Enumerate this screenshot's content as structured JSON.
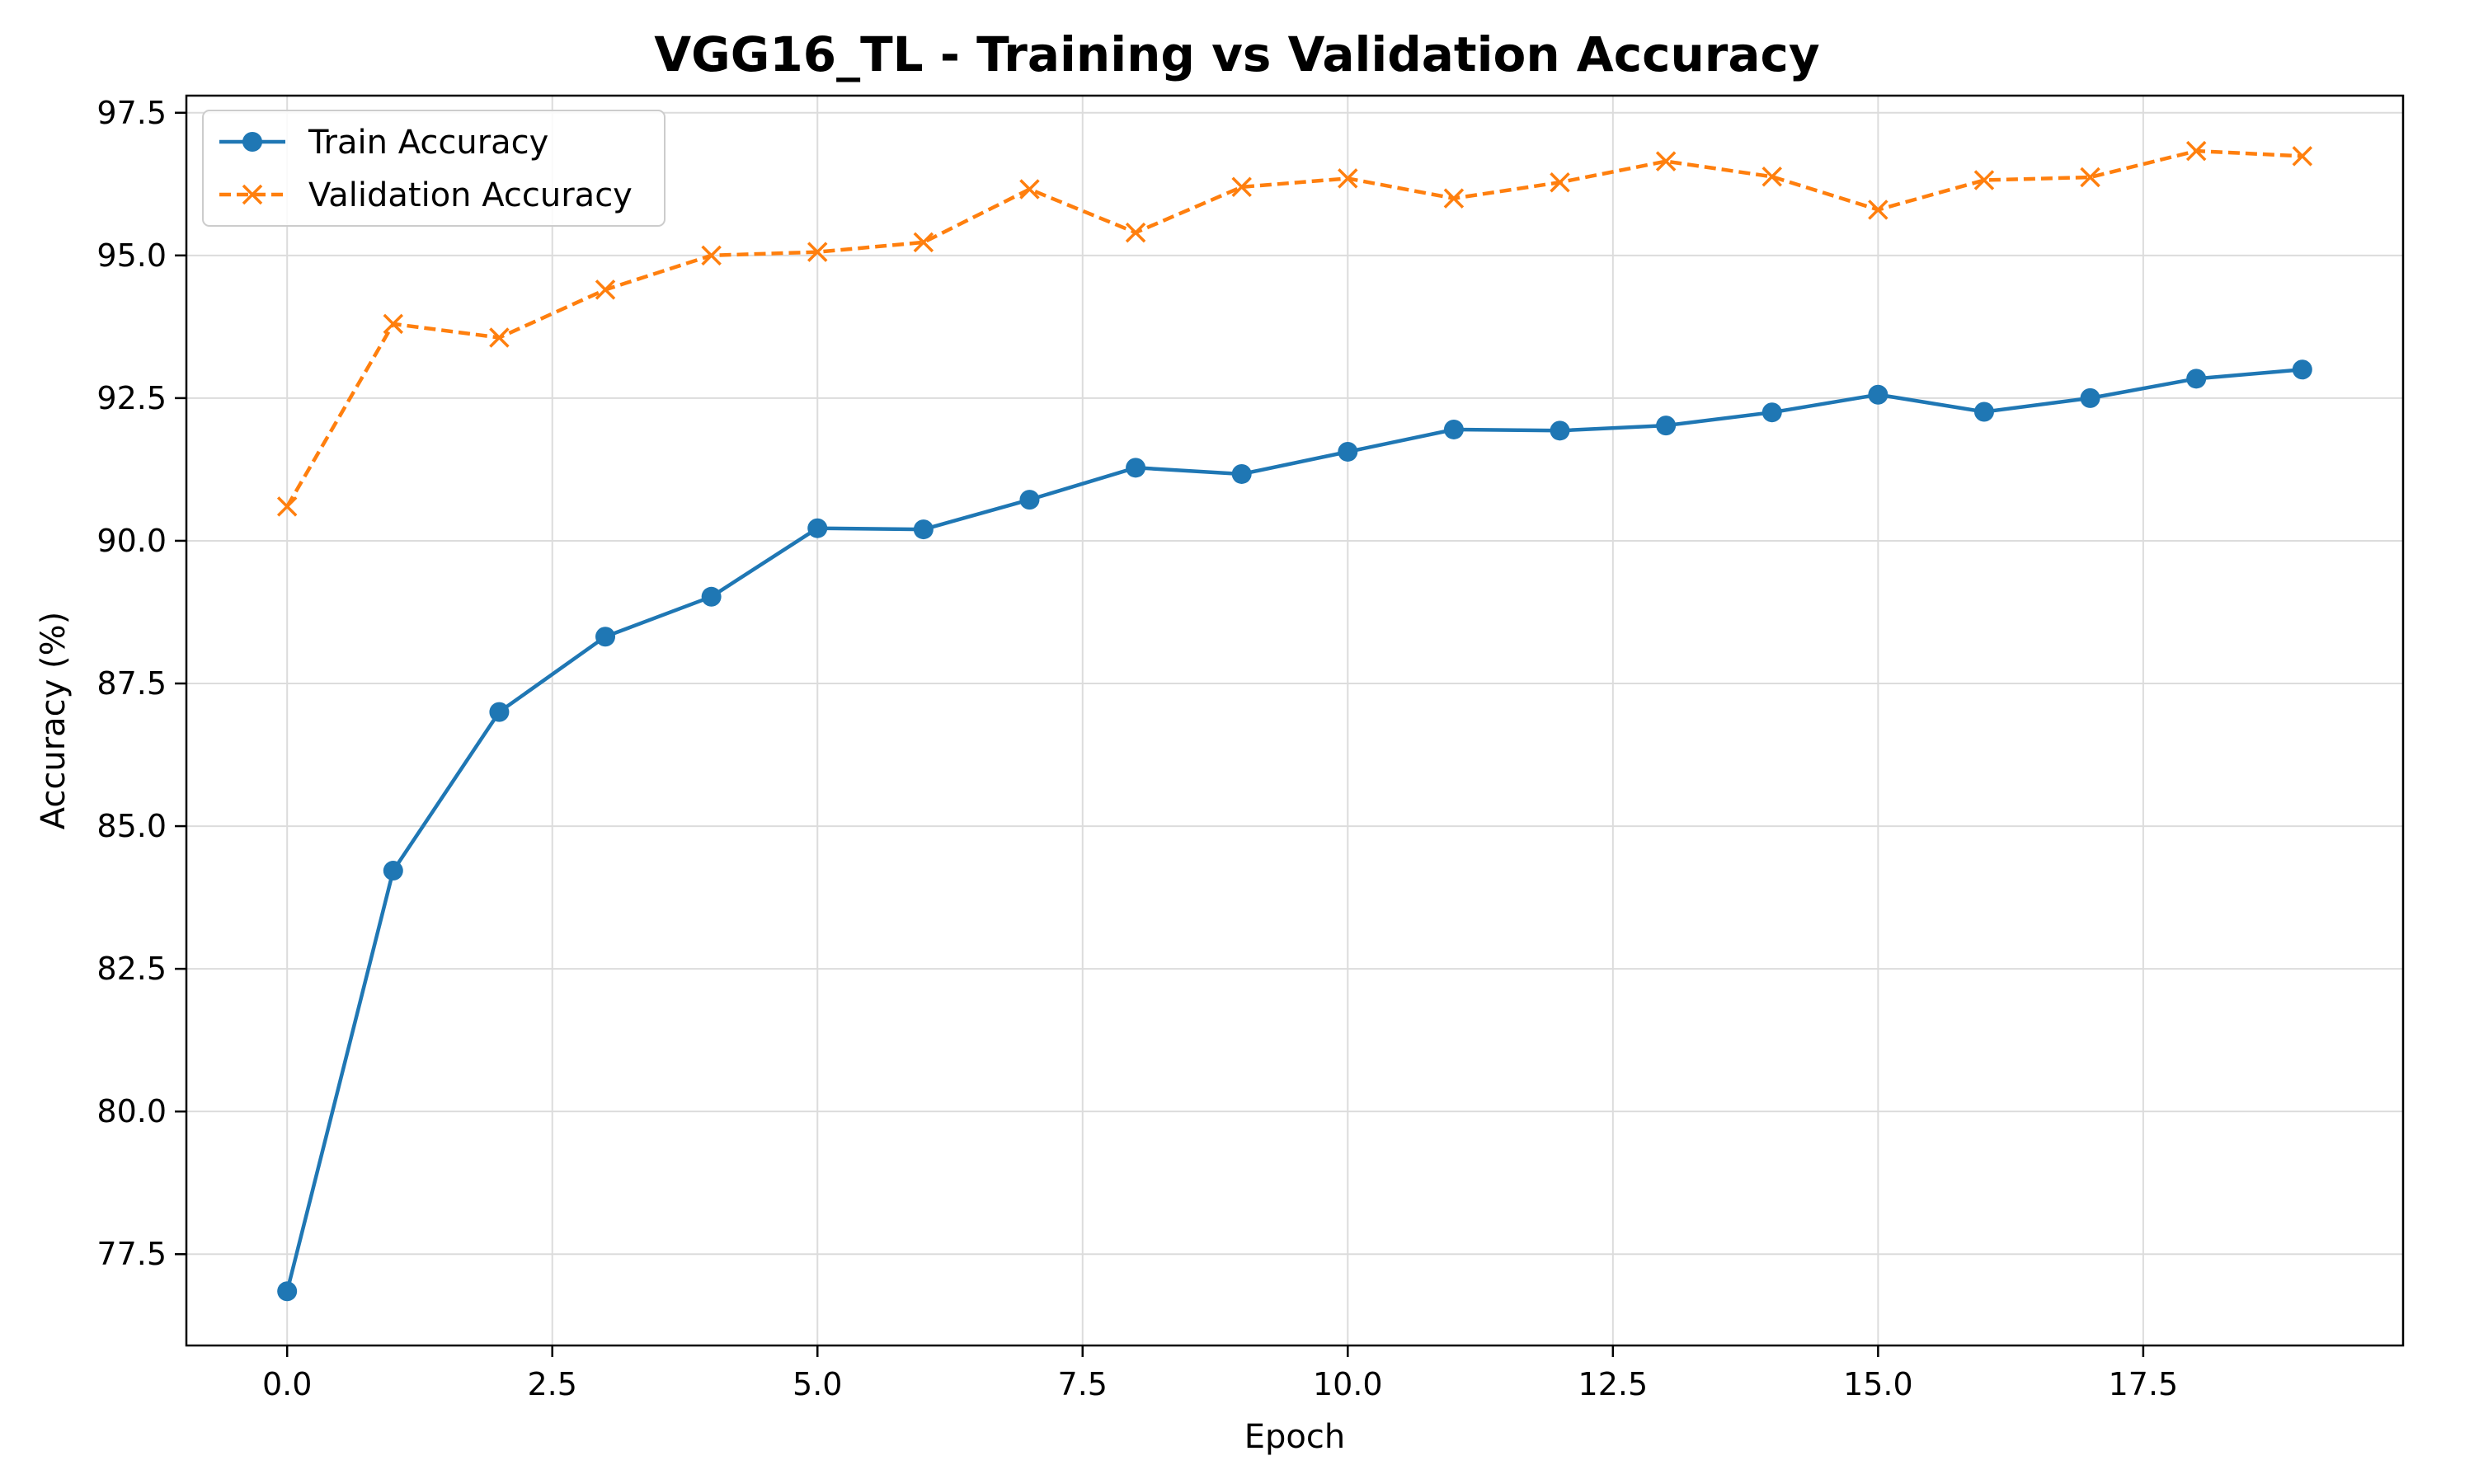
{
  "chart_data": {
    "type": "line",
    "title": "VGG16_TL - Training vs Validation Accuracy",
    "xlabel": "Epoch",
    "ylabel": "Accuracy (%)",
    "xlim": [
      -0.95,
      19.95
    ],
    "ylim": [
      75.9,
      97.8
    ],
    "x_ticks": [
      0.0,
      2.5,
      5.0,
      7.5,
      10.0,
      12.5,
      15.0,
      17.5
    ],
    "x_tick_labels": [
      "0.0",
      "2.5",
      "5.0",
      "7.5",
      "10.0",
      "12.5",
      "15.0",
      "17.5"
    ],
    "y_ticks": [
      77.5,
      80.0,
      82.5,
      85.0,
      87.5,
      90.0,
      92.5,
      95.0,
      97.5
    ],
    "y_tick_labels": [
      "77.5",
      "80.0",
      "82.5",
      "85.0",
      "87.5",
      "90.0",
      "92.5",
      "95.0",
      "97.5"
    ],
    "grid": true,
    "legend_position": "upper-left",
    "x": [
      0,
      1,
      2,
      3,
      4,
      5,
      6,
      7,
      8,
      9,
      10,
      11,
      12,
      13,
      14,
      15,
      16,
      17,
      18,
      19
    ],
    "series": [
      {
        "name": "Train Accuracy",
        "color": "#1f77b4",
        "marker": "circle",
        "line_style": "solid",
        "values": [
          76.85,
          84.22,
          87.0,
          88.32,
          89.02,
          90.22,
          90.2,
          90.72,
          91.28,
          91.17,
          91.56,
          91.95,
          91.93,
          92.02,
          92.25,
          92.56,
          92.26,
          92.5,
          92.84,
          93.0
        ]
      },
      {
        "name": "Validation Accuracy",
        "color": "#ff7f0e",
        "marker": "x",
        "line_style": "dashed",
        "values": [
          90.6,
          93.8,
          93.56,
          94.4,
          95.0,
          95.06,
          95.23,
          96.16,
          95.4,
          96.2,
          96.35,
          96.0,
          96.28,
          96.65,
          96.38,
          95.8,
          96.32,
          96.37,
          96.83,
          96.74
        ]
      }
    ]
  }
}
